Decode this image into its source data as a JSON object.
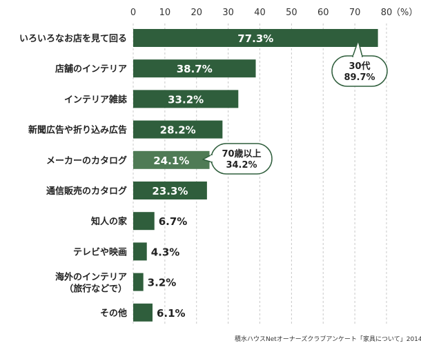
{
  "chart_data": {
    "type": "bar",
    "orientation": "horizontal",
    "categories": [
      [
        "いろいろなお店を見て回る"
      ],
      [
        "店舗のインテリア"
      ],
      [
        "インテリア雑誌"
      ],
      [
        "新聞広告や折り込み広告"
      ],
      [
        "メーカーのカタログ"
      ],
      [
        "通信販売のカタログ"
      ],
      [
        "知人の家"
      ],
      [
        "テレビや映画"
      ],
      [
        "海外のインテリア",
        "（旅行などで）"
      ],
      [
        "その他"
      ]
    ],
    "values": [
      77.3,
      38.7,
      33.2,
      28.2,
      24.1,
      23.3,
      6.7,
      4.3,
      3.2,
      6.1
    ],
    "value_labels": [
      "77.3%",
      "38.7%",
      "33.2%",
      "28.2%",
      "24.1%",
      "23.3%",
      "6.7%",
      "4.3%",
      "3.2%",
      "6.1%"
    ],
    "xlim": [
      0,
      80
    ],
    "x_ticks": [
      "0",
      "10",
      "20",
      "30",
      "40",
      "50",
      "60",
      "70",
      "80"
    ],
    "x_unit": "（%）",
    "grid": "vertical-dashed",
    "highlight_index": 4,
    "colors": {
      "bar": "#2f5e3c",
      "bar_highlight": "#4f7b55",
      "grid": "#c8c8c8",
      "callout_border": "#2f5e3c"
    },
    "annotations": [
      {
        "target": 0,
        "lines": [
          "30代",
          "89.7%"
        ]
      },
      {
        "target": 4,
        "lines": [
          "70歳以上",
          "34.2%"
        ]
      }
    ]
  },
  "source": "積水ハウスNetオーナーズクラブアンケート「家具について」2014"
}
